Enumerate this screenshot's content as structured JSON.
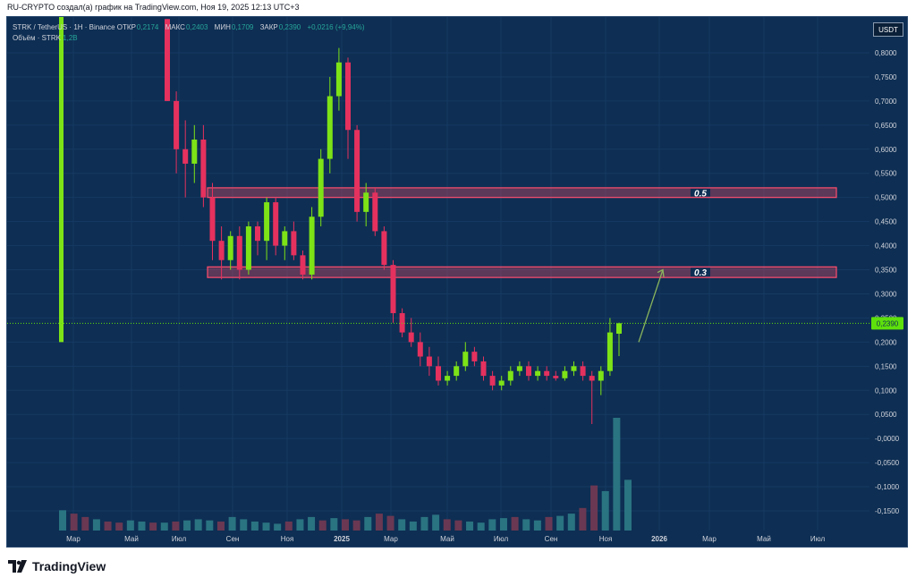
{
  "header": {
    "attribution": "RU-CRYPTO создал(а) график на TradingView.com, Ноя 19, 2025 12:13 UTC+3"
  },
  "legend": {
    "symbol": "STRK / TetherUS · 1H · Binance",
    "open_label": "ОТКР",
    "open_value": "0,2174",
    "high_label": "МАКС",
    "high_value": "0,2403",
    "low_label": "МИН",
    "low_value": "0,1709",
    "close_label": "ЗАКР",
    "close_value": "0,2390",
    "change": "+0,0216 (+9,94%)",
    "volume_label": "Объём · STRK",
    "volume_value": "1,2B"
  },
  "currency_button": "USDT",
  "brand": {
    "name": "TradingView"
  },
  "colors": {
    "background": "#0e2e53",
    "up": "#7de317",
    "down": "#e5315e",
    "zone_fill": "#ef4a63",
    "arrow": "#8bb65c",
    "last_price_bg": "#5ee10b"
  },
  "chart_data": {
    "type": "candlestick",
    "xlabels": [
      "Мар",
      "Май",
      "Июл",
      "Сен",
      "Ноя",
      "2025",
      "Мар",
      "Май",
      "Июл",
      "Сен",
      "Ноя",
      "2026",
      "Мар",
      "Май",
      "Июл"
    ],
    "y_ticks": [
      "0,8000",
      "0,7500",
      "0,7000",
      "0,6500",
      "0,6000",
      "0,5500",
      "0,5000",
      "0,4500",
      "0,4000",
      "0,3500",
      "0,3000",
      "0,2500",
      "0,2000",
      "0,1500",
      "0,1000",
      "0,0500",
      "-0,0000",
      "-0,0500",
      "-0,1000",
      "-0,1500"
    ],
    "ylim": [
      -0.19,
      0.84
    ],
    "last_price": "0,2390",
    "last_price_value": 0.239,
    "zones": [
      {
        "label": "0.5",
        "low": 0.5,
        "high": 0.52
      },
      {
        "label": "0.3",
        "low": 0.334,
        "high": 0.356
      }
    ],
    "projection_arrow": {
      "from_price": 0.2,
      "to_price": 0.35
    },
    "spike": {
      "high": 0.88,
      "low": 0.2
    },
    "candles": [
      [
        0.87,
        0.87,
        0.7,
        0.7
      ],
      [
        0.7,
        0.72,
        0.55,
        0.6
      ],
      [
        0.6,
        0.66,
        0.5,
        0.57
      ],
      [
        0.57,
        0.65,
        0.53,
        0.62
      ],
      [
        0.62,
        0.65,
        0.48,
        0.5
      ],
      [
        0.5,
        0.53,
        0.37,
        0.41
      ],
      [
        0.41,
        0.44,
        0.33,
        0.37
      ],
      [
        0.37,
        0.43,
        0.35,
        0.42
      ],
      [
        0.42,
        0.44,
        0.33,
        0.35
      ],
      [
        0.35,
        0.45,
        0.34,
        0.44
      ],
      [
        0.44,
        0.45,
        0.38,
        0.41
      ],
      [
        0.41,
        0.5,
        0.37,
        0.49
      ],
      [
        0.49,
        0.5,
        0.38,
        0.4
      ],
      [
        0.4,
        0.44,
        0.37,
        0.43
      ],
      [
        0.43,
        0.45,
        0.37,
        0.38
      ],
      [
        0.38,
        0.39,
        0.33,
        0.34
      ],
      [
        0.34,
        0.48,
        0.33,
        0.46
      ],
      [
        0.46,
        0.6,
        0.44,
        0.58
      ],
      [
        0.58,
        0.75,
        0.55,
        0.71
      ],
      [
        0.71,
        0.81,
        0.68,
        0.78
      ],
      [
        0.78,
        0.79,
        0.58,
        0.64
      ],
      [
        0.64,
        0.65,
        0.45,
        0.47
      ],
      [
        0.47,
        0.53,
        0.44,
        0.51
      ],
      [
        0.51,
        0.52,
        0.42,
        0.43
      ],
      [
        0.43,
        0.44,
        0.35,
        0.36
      ],
      [
        0.36,
        0.37,
        0.24,
        0.26
      ],
      [
        0.26,
        0.27,
        0.21,
        0.22
      ],
      [
        0.22,
        0.25,
        0.19,
        0.2
      ],
      [
        0.2,
        0.22,
        0.15,
        0.17
      ],
      [
        0.17,
        0.19,
        0.13,
        0.15
      ],
      [
        0.15,
        0.17,
        0.11,
        0.12
      ],
      [
        0.12,
        0.14,
        0.11,
        0.13
      ],
      [
        0.13,
        0.16,
        0.12,
        0.15
      ],
      [
        0.15,
        0.2,
        0.14,
        0.18
      ],
      [
        0.18,
        0.19,
        0.15,
        0.16
      ],
      [
        0.16,
        0.17,
        0.12,
        0.13
      ],
      [
        0.13,
        0.14,
        0.1,
        0.11
      ],
      [
        0.11,
        0.13,
        0.1,
        0.12
      ],
      [
        0.12,
        0.15,
        0.11,
        0.14
      ],
      [
        0.14,
        0.16,
        0.13,
        0.15
      ],
      [
        0.15,
        0.16,
        0.12,
        0.13
      ],
      [
        0.13,
        0.15,
        0.12,
        0.14
      ],
      [
        0.14,
        0.15,
        0.12,
        0.13
      ],
      [
        0.13,
        0.14,
        0.12,
        0.125
      ],
      [
        0.125,
        0.15,
        0.12,
        0.14
      ],
      [
        0.14,
        0.16,
        0.13,
        0.15
      ],
      [
        0.15,
        0.16,
        0.12,
        0.13
      ],
      [
        0.13,
        0.14,
        0.03,
        0.12
      ],
      [
        0.12,
        0.15,
        0.09,
        0.14
      ],
      [
        0.14,
        0.25,
        0.13,
        0.22
      ],
      [
        0.2174,
        0.2403,
        0.1709,
        0.239
      ]
    ],
    "volumes": [
      0.18,
      0.15,
      0.12,
      0.1,
      0.08,
      0.07,
      0.09,
      0.08,
      0.07,
      0.07,
      0.08,
      0.09,
      0.1,
      0.09,
      0.08,
      0.12,
      0.1,
      0.08,
      0.07,
      0.06,
      0.08,
      0.1,
      0.12,
      0.09,
      0.11,
      0.1,
      0.09,
      0.12,
      0.15,
      0.13,
      0.1,
      0.08,
      0.12,
      0.14,
      0.1,
      0.09,
      0.08,
      0.07,
      0.1,
      0.11,
      0.12,
      0.1,
      0.09,
      0.12,
      0.13,
      0.15,
      0.2,
      0.4,
      0.35,
      1.0,
      0.45
    ]
  }
}
